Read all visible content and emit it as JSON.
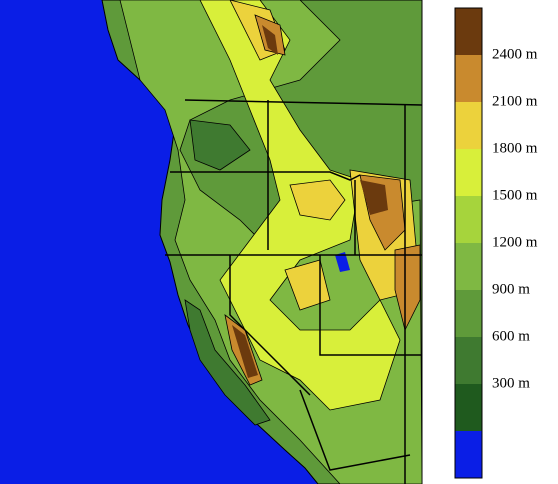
{
  "legend": {
    "labels": [
      "2400 m",
      "2100 m",
      "1800 m",
      "1500 m",
      "1200 m",
      "900 m",
      "600 m",
      "300 m"
    ],
    "colors": [
      "#6b3a0e",
      "#c98a2e",
      "#ecd23c",
      "#d8ef3a",
      "#a6d43c",
      "#7fb843",
      "#5f9a3a",
      "#3f7a30",
      "#1f5a1e",
      "#0a1ee6"
    ]
  }
}
